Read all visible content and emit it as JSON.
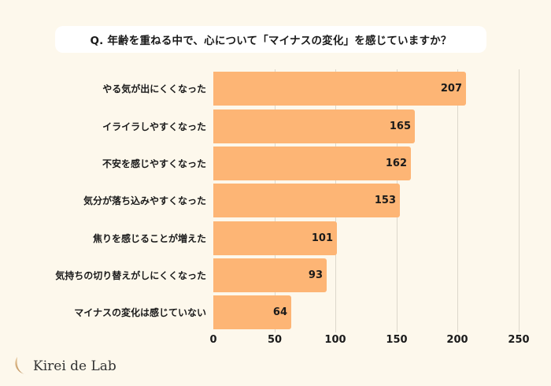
{
  "title": "Q. 年齢を重ねる中で、心について「マイナスの変化」を感じていますか？",
  "brand": "Kirei de Lab",
  "colors": {
    "bar": "#fdb575",
    "background": "#fdf8ec",
    "grid": "#dcd7cb"
  },
  "chart_data": {
    "type": "bar",
    "orientation": "horizontal",
    "title": "Q. 年齢を重ねる中で、心について「マイナスの変化」を感じていますか？",
    "categories": [
      "やる気が出にくくなった",
      "イライラしやすくなった",
      "不安を感じやすくなった",
      "気分が落ち込みやすくなった",
      "焦りを感じることが増えた",
      "気持ちの切り替えがしにくくなった",
      "マイナスの変化は感じていない"
    ],
    "values": [
      207,
      165,
      162,
      153,
      101,
      93,
      64
    ],
    "xlabel": "",
    "ylabel": "",
    "xlim": [
      0,
      250
    ],
    "xticks": [
      "0",
      "50",
      "100",
      "150",
      "200",
      "250"
    ],
    "grid": true,
    "data_labels": true,
    "legend": null
  }
}
